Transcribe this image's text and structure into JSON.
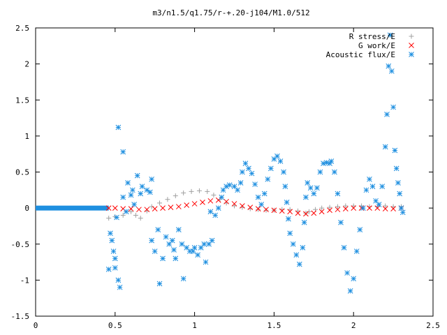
{
  "chart_data": {
    "type": "scatter",
    "title": "m3/n1.5/q1.75/r-+.20-j104/M1.0/512",
    "xlabel": "",
    "ylabel": "",
    "xlim": [
      0,
      2.5
    ],
    "ylim": [
      -1.5,
      2.5
    ],
    "x_ticks": [
      "0",
      "0.5",
      "1",
      "1.5",
      "2",
      "2.5"
    ],
    "y_ticks": [
      "2.5",
      "2",
      "1.5",
      "1",
      "0.5",
      "0",
      "-0.5",
      "-1",
      "-1.5"
    ],
    "grid": false,
    "legend_position": "top-right",
    "series": [
      {
        "name": "R stress/E",
        "marker": "+",
        "color": "#a0a0a0",
        "points": [
          [
            0.46,
            -0.14
          ],
          [
            0.5,
            -0.12
          ],
          [
            0.55,
            -0.1
          ],
          [
            0.6,
            -0.05
          ],
          [
            0.63,
            -0.1
          ],
          [
            0.66,
            -0.14
          ],
          [
            0.7,
            -0.04
          ],
          [
            0.73,
            0.02
          ],
          [
            0.78,
            0.07
          ],
          [
            0.83,
            0.12
          ],
          [
            0.88,
            0.17
          ],
          [
            0.93,
            0.21
          ],
          [
            0.98,
            0.23
          ],
          [
            1.03,
            0.24
          ],
          [
            1.08,
            0.23
          ],
          [
            1.12,
            0.18
          ],
          [
            1.16,
            0.12
          ],
          [
            1.2,
            0.07
          ],
          [
            1.25,
            0.03
          ],
          [
            1.3,
            0.01
          ],
          [
            1.35,
            -0.01
          ],
          [
            1.4,
            -0.02
          ],
          [
            1.45,
            -0.03
          ],
          [
            1.5,
            -0.03
          ],
          [
            1.55,
            -0.02
          ],
          [
            1.6,
            -0.02
          ],
          [
            1.65,
            -0.04
          ],
          [
            1.7,
            -0.07
          ],
          [
            1.72,
            -0.05
          ],
          [
            1.76,
            -0.02
          ],
          [
            1.8,
            0.0
          ],
          [
            1.85,
            0.01
          ],
          [
            1.9,
            0.02
          ],
          [
            1.95,
            0.03
          ],
          [
            2.0,
            0.03
          ],
          [
            2.05,
            0.03
          ],
          [
            2.1,
            0.02
          ],
          [
            2.15,
            0.02
          ],
          [
            2.2,
            0.03
          ],
          [
            2.25,
            0.02
          ],
          [
            2.3,
            0.02
          ]
        ]
      },
      {
        "name": "G work/E",
        "marker": "x",
        "color": "#ff0000",
        "points": [
          [
            0.46,
            0.0
          ],
          [
            0.5,
            0.0
          ],
          [
            0.55,
            -0.01
          ],
          [
            0.6,
            -0.01
          ],
          [
            0.65,
            -0.02
          ],
          [
            0.7,
            -0.02
          ],
          [
            0.75,
            -0.01
          ],
          [
            0.8,
            0.0
          ],
          [
            0.85,
            0.01
          ],
          [
            0.9,
            0.02
          ],
          [
            0.95,
            0.04
          ],
          [
            1.0,
            0.06
          ],
          [
            1.05,
            0.08
          ],
          [
            1.1,
            0.1
          ],
          [
            1.15,
            0.11
          ],
          [
            1.2,
            0.09
          ],
          [
            1.25,
            0.06
          ],
          [
            1.3,
            0.03
          ],
          [
            1.35,
            0.01
          ],
          [
            1.4,
            -0.01
          ],
          [
            1.45,
            -0.02
          ],
          [
            1.5,
            -0.03
          ],
          [
            1.55,
            -0.04
          ],
          [
            1.6,
            -0.05
          ],
          [
            1.65,
            -0.07
          ],
          [
            1.7,
            -0.08
          ],
          [
            1.75,
            -0.07
          ],
          [
            1.8,
            -0.05
          ],
          [
            1.85,
            -0.03
          ],
          [
            1.9,
            -0.02
          ],
          [
            1.95,
            -0.01
          ],
          [
            2.0,
            0.0
          ],
          [
            2.05,
            0.0
          ],
          [
            2.1,
            0.0
          ],
          [
            2.15,
            0.0
          ],
          [
            2.2,
            -0.01
          ],
          [
            2.25,
            -0.01
          ],
          [
            2.3,
            0.0
          ]
        ]
      },
      {
        "name": "Acoustic flux/E",
        "marker": "*",
        "color": "#1e8fe0",
        "points": [
          [
            0.46,
            -0.85
          ],
          [
            0.47,
            -0.35
          ],
          [
            0.48,
            -0.45
          ],
          [
            0.49,
            -0.6
          ],
          [
            0.5,
            -0.83
          ],
          [
            0.5,
            -0.7
          ],
          [
            0.51,
            -0.13
          ],
          [
            0.52,
            -1.0
          ],
          [
            0.53,
            -1.1
          ],
          [
            0.52,
            1.12
          ],
          [
            0.55,
            0.78
          ],
          [
            0.55,
            0.15
          ],
          [
            0.57,
            -0.05
          ],
          [
            0.58,
            0.35
          ],
          [
            0.6,
            0.18
          ],
          [
            0.61,
            0.25
          ],
          [
            0.62,
            0.05
          ],
          [
            0.64,
            0.45
          ],
          [
            0.66,
            0.2
          ],
          [
            0.67,
            0.3
          ],
          [
            0.7,
            0.25
          ],
          [
            0.72,
            0.22
          ],
          [
            0.73,
            0.4
          ],
          [
            0.73,
            -0.45
          ],
          [
            0.75,
            -0.6
          ],
          [
            0.77,
            -0.3
          ],
          [
            0.78,
            -1.05
          ],
          [
            0.8,
            -0.7
          ],
          [
            0.82,
            -0.4
          ],
          [
            0.84,
            -0.5
          ],
          [
            0.86,
            -0.45
          ],
          [
            0.87,
            -0.58
          ],
          [
            0.88,
            -0.7
          ],
          [
            0.9,
            -0.3
          ],
          [
            0.92,
            -0.5
          ],
          [
            0.93,
            -0.98
          ],
          [
            0.95,
            -0.55
          ],
          [
            0.97,
            -0.6
          ],
          [
            0.99,
            -0.6
          ],
          [
            1.0,
            -0.55
          ],
          [
            1.02,
            -0.65
          ],
          [
            1.04,
            -0.55
          ],
          [
            1.06,
            -0.5
          ],
          [
            1.07,
            -0.75
          ],
          [
            1.09,
            -0.5
          ],
          [
            1.11,
            -0.45
          ],
          [
            1.1,
            -0.05
          ],
          [
            1.13,
            -0.1
          ],
          [
            1.15,
            0.0
          ],
          [
            1.17,
            0.15
          ],
          [
            1.18,
            0.25
          ],
          [
            1.2,
            0.3
          ],
          [
            1.22,
            0.32
          ],
          [
            1.25,
            0.3
          ],
          [
            1.27,
            0.25
          ],
          [
            1.29,
            0.35
          ],
          [
            1.3,
            0.5
          ],
          [
            1.32,
            0.62
          ],
          [
            1.34,
            0.55
          ],
          [
            1.36,
            0.48
          ],
          [
            1.38,
            0.33
          ],
          [
            1.4,
            0.15
          ],
          [
            1.42,
            0.05
          ],
          [
            1.44,
            0.2
          ],
          [
            1.46,
            0.4
          ],
          [
            1.48,
            0.55
          ],
          [
            1.5,
            0.68
          ],
          [
            1.52,
            0.72
          ],
          [
            1.54,
            0.65
          ],
          [
            1.56,
            0.5
          ],
          [
            1.57,
            0.3
          ],
          [
            1.58,
            0.08
          ],
          [
            1.59,
            -0.15
          ],
          [
            1.6,
            -0.35
          ],
          [
            1.62,
            -0.5
          ],
          [
            1.64,
            -0.65
          ],
          [
            1.66,
            -0.78
          ],
          [
            1.68,
            -0.55
          ],
          [
            1.69,
            -0.2
          ],
          [
            1.7,
            0.15
          ],
          [
            1.71,
            0.35
          ],
          [
            1.73,
            0.28
          ],
          [
            1.75,
            0.2
          ],
          [
            1.77,
            0.28
          ],
          [
            1.79,
            0.5
          ],
          [
            1.81,
            0.62
          ],
          [
            1.83,
            0.63
          ],
          [
            1.85,
            0.62
          ],
          [
            1.86,
            0.65
          ],
          [
            1.88,
            0.5
          ],
          [
            1.9,
            0.2
          ],
          [
            1.92,
            -0.2
          ],
          [
            1.94,
            -0.55
          ],
          [
            1.96,
            -0.9
          ],
          [
            1.98,
            -1.15
          ],
          [
            2.0,
            -0.98
          ],
          [
            2.02,
            -0.6
          ],
          [
            2.04,
            -0.3
          ],
          [
            2.06,
            0.0
          ],
          [
            2.08,
            0.25
          ],
          [
            2.1,
            0.4
          ],
          [
            2.12,
            0.3
          ],
          [
            2.14,
            0.1
          ],
          [
            2.16,
            0.05
          ],
          [
            2.18,
            0.3
          ],
          [
            2.2,
            0.85
          ],
          [
            2.21,
            1.3
          ],
          [
            2.22,
            1.97
          ],
          [
            2.23,
            2.4
          ],
          [
            2.24,
            1.9
          ],
          [
            2.25,
            1.4
          ],
          [
            2.26,
            0.8
          ],
          [
            2.27,
            0.55
          ],
          [
            2.28,
            0.35
          ],
          [
            2.29,
            0.2
          ],
          [
            2.3,
            0.0
          ],
          [
            2.31,
            -0.06
          ]
        ]
      }
    ]
  }
}
